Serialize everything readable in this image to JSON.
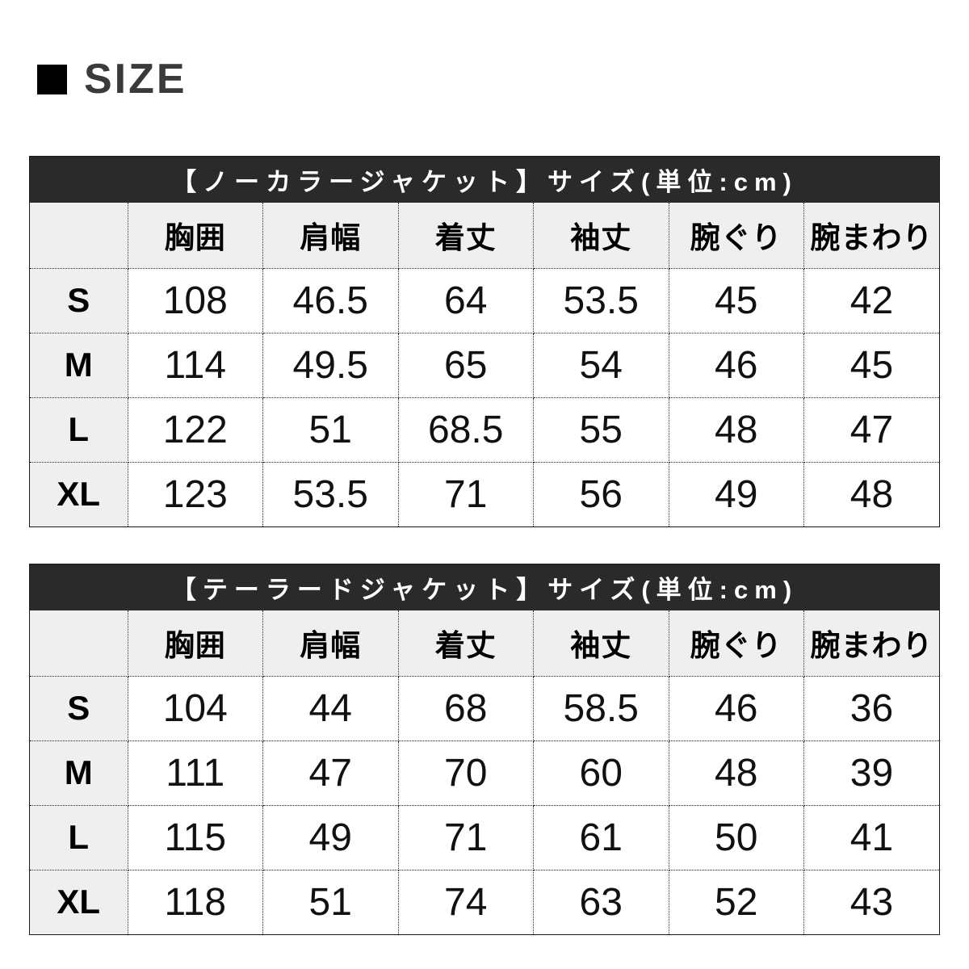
{
  "heading": {
    "title": "SIZE"
  },
  "columns": [
    "",
    "胸囲",
    "肩幅",
    "着丈",
    "袖丈",
    "腕ぐり",
    "腕まわり"
  ],
  "tables": [
    {
      "title": "【ノーカラージャケット】サイズ(単位:cm)",
      "rows": [
        {
          "size": "S",
          "values": [
            "108",
            "46.5",
            "64",
            "53.5",
            "45",
            "42"
          ]
        },
        {
          "size": "M",
          "values": [
            "114",
            "49.5",
            "65",
            "54",
            "46",
            "45"
          ]
        },
        {
          "size": "L",
          "values": [
            "122",
            "51",
            "68.5",
            "55",
            "48",
            "47"
          ]
        },
        {
          "size": "XL",
          "values": [
            "123",
            "53.5",
            "71",
            "56",
            "49",
            "48"
          ]
        }
      ]
    },
    {
      "title": "【テーラードジャケット】サイズ(単位:cm)",
      "rows": [
        {
          "size": "S",
          "values": [
            "104",
            "44",
            "68",
            "58.5",
            "46",
            "36"
          ]
        },
        {
          "size": "M",
          "values": [
            "111",
            "47",
            "70",
            "60",
            "48",
            "39"
          ]
        },
        {
          "size": "L",
          "values": [
            "115",
            "49",
            "71",
            "61",
            "50",
            "41"
          ]
        },
        {
          "size": "XL",
          "values": [
            "118",
            "51",
            "74",
            "63",
            "52",
            "43"
          ]
        }
      ]
    }
  ],
  "colors": {
    "title_bar_bg": "#2a2a2a",
    "title_bar_text": "#ffffff",
    "header_bg": "#efefef",
    "cell_bg": "#ffffff",
    "outer_border": "#1a1a1a",
    "heading_text": "#3a3a3a",
    "heading_square": "#000000"
  }
}
